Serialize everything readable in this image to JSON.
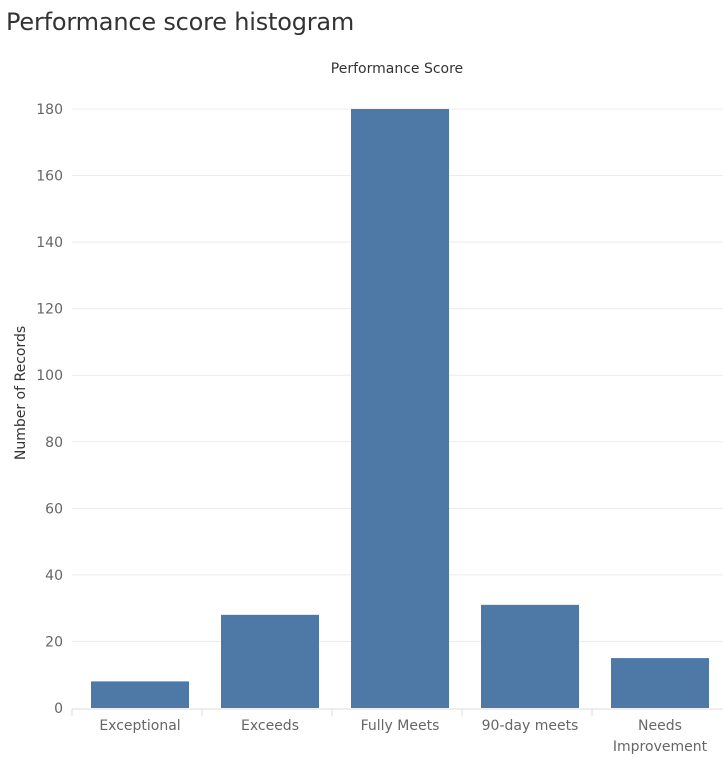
{
  "page_title": "Performance score histogram",
  "chart_data": {
    "type": "bar",
    "title": "Performance score histogram",
    "column_header": "Performance Score",
    "xlabel": "",
    "ylabel": "Number of Records",
    "categories": [
      "Exceptional",
      "Exceeds",
      "Fully Meets",
      "90-day meets",
      "Needs Improvement"
    ],
    "category_lines": [
      [
        "Exceptional"
      ],
      [
        "Exceeds"
      ],
      [
        "Fully Meets"
      ],
      [
        "90-day meets"
      ],
      [
        "Needs",
        "Improvement"
      ]
    ],
    "values": [
      8,
      28,
      180,
      31,
      15
    ],
    "ylim": [
      0,
      180
    ],
    "yticks": [
      0,
      20,
      40,
      60,
      80,
      100,
      120,
      140,
      160,
      180
    ],
    "grid": true,
    "legend": "none",
    "colors": {
      "bar": "#4e79a7",
      "grid": "#ececec",
      "tick_text": "#666666",
      "axis_title_text": "#333333"
    }
  }
}
